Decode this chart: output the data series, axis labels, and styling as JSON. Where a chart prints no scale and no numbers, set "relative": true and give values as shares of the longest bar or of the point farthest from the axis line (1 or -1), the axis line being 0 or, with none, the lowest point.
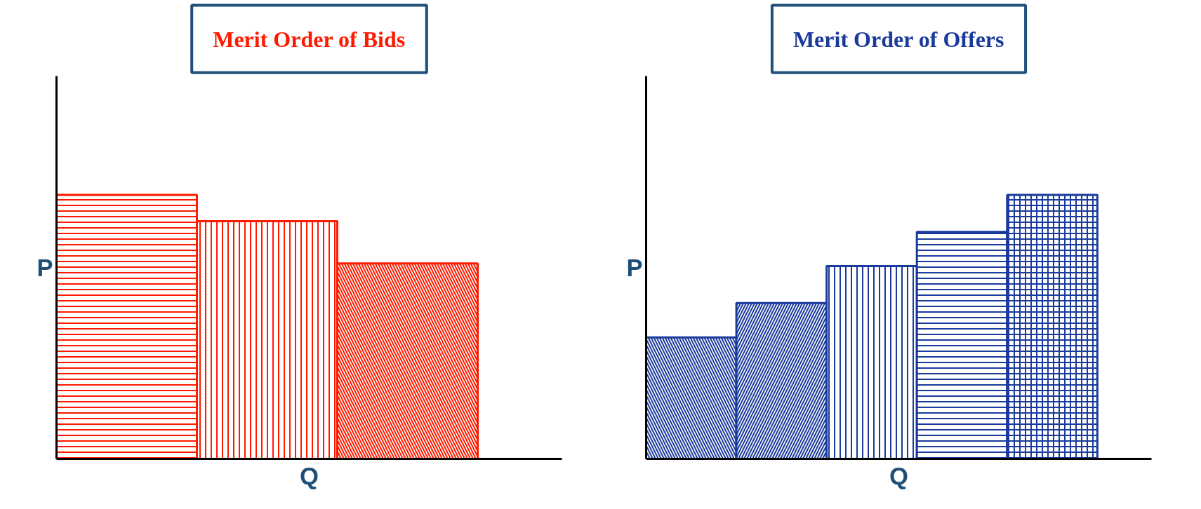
{
  "chart_data": [
    {
      "type": "bar",
      "title": "Merit Order of Bids",
      "xlabel": "Q",
      "ylabel": "P",
      "relative": true,
      "categories": [
        null,
        null,
        null
      ],
      "series": [
        {
          "color": "#ff1a00",
          "values": [
            1,
            0.9,
            0.74
          ]
        }
      ]
    },
    {
      "type": "bar",
      "title": "Merit Order of Offers",
      "xlabel": "Q",
      "ylabel": "P",
      "relative": true,
      "categories": [
        null,
        null,
        null,
        null,
        null
      ],
      "series": [
        {
          "color": "#1a3a9c",
          "values": [
            0.46,
            0.59,
            0.73,
            0.86,
            1
          ]
        }
      ]
    }
  ]
}
